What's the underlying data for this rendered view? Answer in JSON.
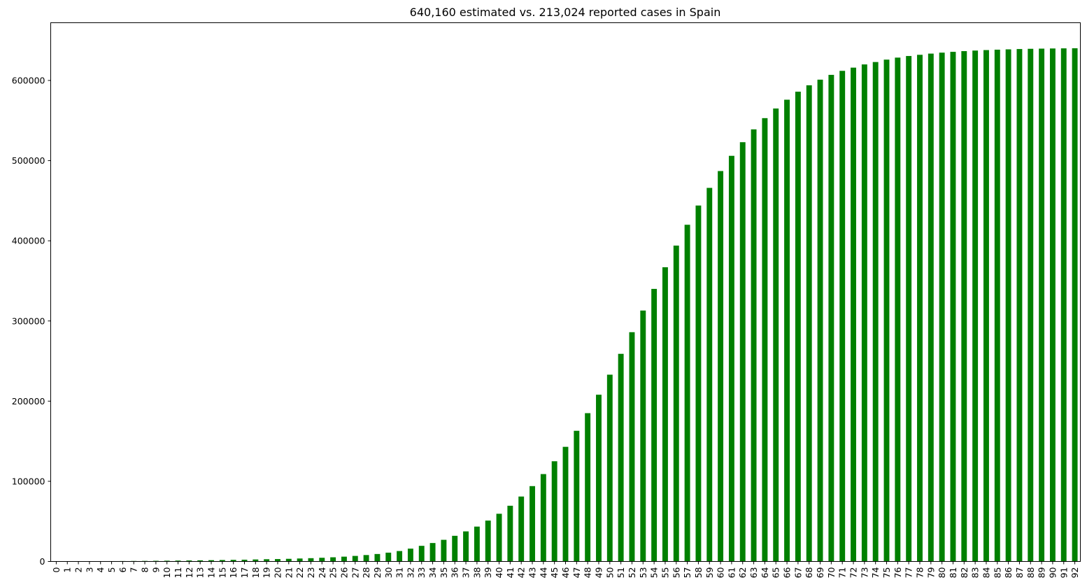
{
  "chart_data": {
    "type": "bar",
    "title": "640,160 estimated vs. 213,024 reported cases in Spain",
    "xlabel": "",
    "ylabel": "",
    "ylim": [
      0,
      672000
    ],
    "yticks": [
      0,
      100000,
      200000,
      300000,
      400000,
      500000,
      600000
    ],
    "bar_color": "#008000",
    "grid": false,
    "legend": "none",
    "categories": [
      "0",
      "1",
      "2",
      "3",
      "4",
      "5",
      "6",
      "7",
      "8",
      "9",
      "10",
      "11",
      "12",
      "13",
      "14",
      "15",
      "16",
      "17",
      "18",
      "19",
      "20",
      "21",
      "22",
      "23",
      "24",
      "25",
      "26",
      "27",
      "28",
      "29",
      "30",
      "31",
      "32",
      "33",
      "34",
      "35",
      "36",
      "37",
      "38",
      "39",
      "40",
      "41",
      "42",
      "43",
      "44",
      "45",
      "46",
      "47",
      "48",
      "49",
      "50",
      "51",
      "52",
      "53",
      "54",
      "55",
      "56",
      "57",
      "58",
      "59",
      "60",
      "61",
      "62",
      "63",
      "64",
      "65",
      "66",
      "67",
      "68",
      "69",
      "70",
      "71",
      "72",
      "73",
      "74",
      "75",
      "76",
      "77",
      "78",
      "79",
      "80",
      "81",
      "82",
      "83",
      "84",
      "85",
      "86",
      "87",
      "88",
      "89",
      "90",
      "91",
      "92"
    ],
    "values": [
      150,
      200,
      260,
      320,
      380,
      450,
      520,
      600,
      700,
      820,
      950,
      1100,
      1250,
      1400,
      1600,
      1800,
      2000,
      2200,
      2500,
      2800,
      3000,
      3300,
      3700,
      4100,
      4600,
      5200,
      6000,
      6900,
      8000,
      9300,
      11000,
      13000,
      16000,
      19500,
      23000,
      27000,
      32000,
      37500,
      43500,
      51000,
      59500,
      69500,
      81000,
      94000,
      109000,
      125000,
      143000,
      163000,
      185000,
      208000,
      233000,
      259000,
      286000,
      313000,
      340000,
      367000,
      394000,
      420000,
      444000,
      466000,
      487000,
      506000,
      523000,
      539000,
      553000,
      565000,
      576000,
      586000,
      594000,
      601000,
      607000,
      612000,
      616000,
      620000,
      623000,
      626000,
      628500,
      630500,
      632000,
      633500,
      634700,
      635700,
      636600,
      637300,
      637900,
      638400,
      638800,
      639200,
      639500,
      639700,
      639900,
      640050,
      640160
    ]
  }
}
